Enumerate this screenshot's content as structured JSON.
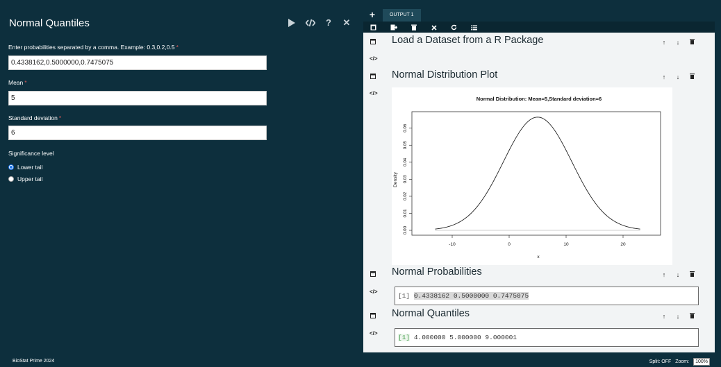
{
  "panel": {
    "title": "Normal Quantiles",
    "tools": {
      "run_icon": "play-icon",
      "code_icon": "code-icon",
      "help_label": "?",
      "close_label": "✕"
    }
  },
  "form": {
    "probabilities": {
      "label": "Enter probabilities separated by a comma. Example: 0.3,0.2,0.5",
      "required_mark": "*",
      "value": "0.4338162,0.5000000,0.7475075"
    },
    "mean": {
      "label": "Mean",
      "required_mark": "*",
      "value": "5"
    },
    "sd": {
      "label": "Standard deviation",
      "required_mark": "*",
      "value": "6"
    },
    "significance": {
      "label": "Significance level",
      "options": [
        "Lower tail",
        "Upper tail"
      ],
      "selected": "Lower tail"
    }
  },
  "output": {
    "add_label": "+",
    "tab_label": "OUTPUT 1",
    "toolbar_icons": [
      "box-icon",
      "export-icon",
      "trash-icon",
      "close-icon",
      "refresh-icon",
      "list-icon"
    ],
    "sections": [
      {
        "title": "Load a Dataset from a R Package"
      },
      {
        "title": "Normal Distribution Plot"
      },
      {
        "title": "Normal Probabilities",
        "output_index": "[1]",
        "output_text": "0.4338162 0.5000000 0.7475075"
      },
      {
        "title": "Normal Quantiles",
        "output_index": "[1]",
        "output_text": "4.000000 5.000000 9.000001"
      }
    ],
    "section_tool_labels": {
      "up": "↑",
      "down": "↓"
    }
  },
  "chart_data": {
    "type": "line",
    "title": "Normal Distribution:  Mean=5,Standard deviation=6",
    "xlabel": "x",
    "ylabel": "Density",
    "xlim": [
      -15,
      25
    ],
    "ylim": [
      0,
      0.066
    ],
    "x_ticks": [
      -10,
      0,
      10,
      20
    ],
    "y_ticks": [
      0.0,
      0.01,
      0.02,
      0.03,
      0.04,
      0.05,
      0.06
    ],
    "y_tick_labels": [
      "0.00",
      "0.01",
      "0.02",
      "0.03",
      "0.04",
      "0.05",
      "0.06"
    ],
    "series": [
      {
        "mean": 5,
        "sd": 6,
        "x_from": -13,
        "x_to": 23,
        "x": [
          -13,
          -11,
          -9,
          -7,
          -5,
          -3,
          -1,
          1,
          3,
          5,
          7,
          9,
          11,
          13,
          15,
          17,
          19,
          21,
          23
        ],
        "values": [
          0.00074,
          0.0019,
          0.00434,
          0.009,
          0.01658,
          0.02733,
          0.04033,
          0.05324,
          0.06289,
          0.06649,
          0.06289,
          0.05324,
          0.04033,
          0.02733,
          0.01658,
          0.009,
          0.00434,
          0.0019,
          0.00074
        ]
      }
    ],
    "grid": false
  },
  "footer": {
    "brand": "BioStat Prime 2024",
    "split_label": "Split: OFF",
    "zoom_label": "Zoom:",
    "zoom_value": "100%"
  }
}
